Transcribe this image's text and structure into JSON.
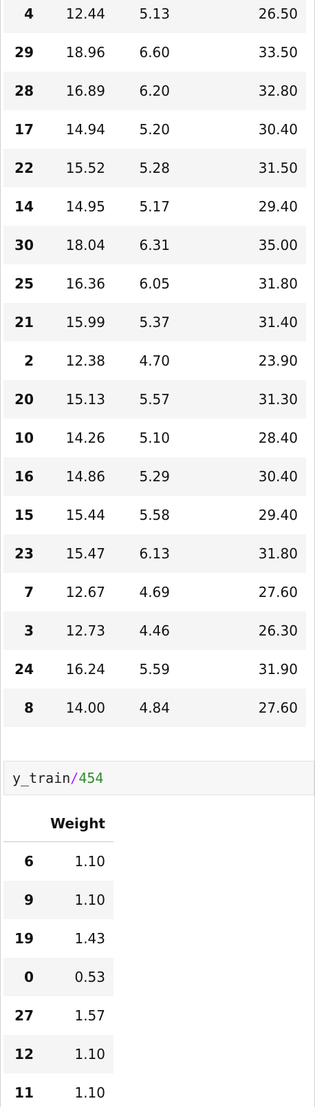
{
  "top_table": {
    "rows": [
      {
        "index": "4",
        "c1": "12.44",
        "c2": "5.13",
        "c3": "26.50"
      },
      {
        "index": "29",
        "c1": "18.96",
        "c2": "6.60",
        "c3": "33.50"
      },
      {
        "index": "28",
        "c1": "16.89",
        "c2": "6.20",
        "c3": "32.80"
      },
      {
        "index": "17",
        "c1": "14.94",
        "c2": "5.20",
        "c3": "30.40"
      },
      {
        "index": "22",
        "c1": "15.52",
        "c2": "5.28",
        "c3": "31.50"
      },
      {
        "index": "14",
        "c1": "14.95",
        "c2": "5.17",
        "c3": "29.40"
      },
      {
        "index": "30",
        "c1": "18.04",
        "c2": "6.31",
        "c3": "35.00"
      },
      {
        "index": "25",
        "c1": "16.36",
        "c2": "6.05",
        "c3": "31.80"
      },
      {
        "index": "21",
        "c1": "15.99",
        "c2": "5.37",
        "c3": "31.40"
      },
      {
        "index": "2",
        "c1": "12.38",
        "c2": "4.70",
        "c3": "23.90"
      },
      {
        "index": "20",
        "c1": "15.13",
        "c2": "5.57",
        "c3": "31.30"
      },
      {
        "index": "10",
        "c1": "14.26",
        "c2": "5.10",
        "c3": "28.40"
      },
      {
        "index": "16",
        "c1": "14.86",
        "c2": "5.29",
        "c3": "30.40"
      },
      {
        "index": "15",
        "c1": "15.44",
        "c2": "5.58",
        "c3": "29.40"
      },
      {
        "index": "23",
        "c1": "15.47",
        "c2": "6.13",
        "c3": "31.80"
      },
      {
        "index": "7",
        "c1": "12.67",
        "c2": "4.69",
        "c3": "27.60"
      },
      {
        "index": "3",
        "c1": "12.73",
        "c2": "4.46",
        "c3": "26.30"
      },
      {
        "index": "24",
        "c1": "16.24",
        "c2": "5.59",
        "c3": "31.90"
      },
      {
        "index": "8",
        "c1": "14.00",
        "c2": "4.84",
        "c3": "27.60"
      }
    ]
  },
  "code_cell": {
    "var": "y_train",
    "op": "/",
    "literal": "454"
  },
  "bottom_table": {
    "header": "Weight",
    "rows": [
      {
        "index": "6",
        "weight": "1.10"
      },
      {
        "index": "9",
        "weight": "1.10"
      },
      {
        "index": "19",
        "weight": "1.43"
      },
      {
        "index": "0",
        "weight": "0.53"
      },
      {
        "index": "27",
        "weight": "1.57"
      },
      {
        "index": "12",
        "weight": "1.10"
      },
      {
        "index": "11",
        "weight": "1.10"
      }
    ]
  },
  "colors": {
    "stripe": "#f5f5f5",
    "code_bg": "#f7f7f7",
    "operator": "#aa22ff",
    "number_literal": "#2e8b2e"
  }
}
